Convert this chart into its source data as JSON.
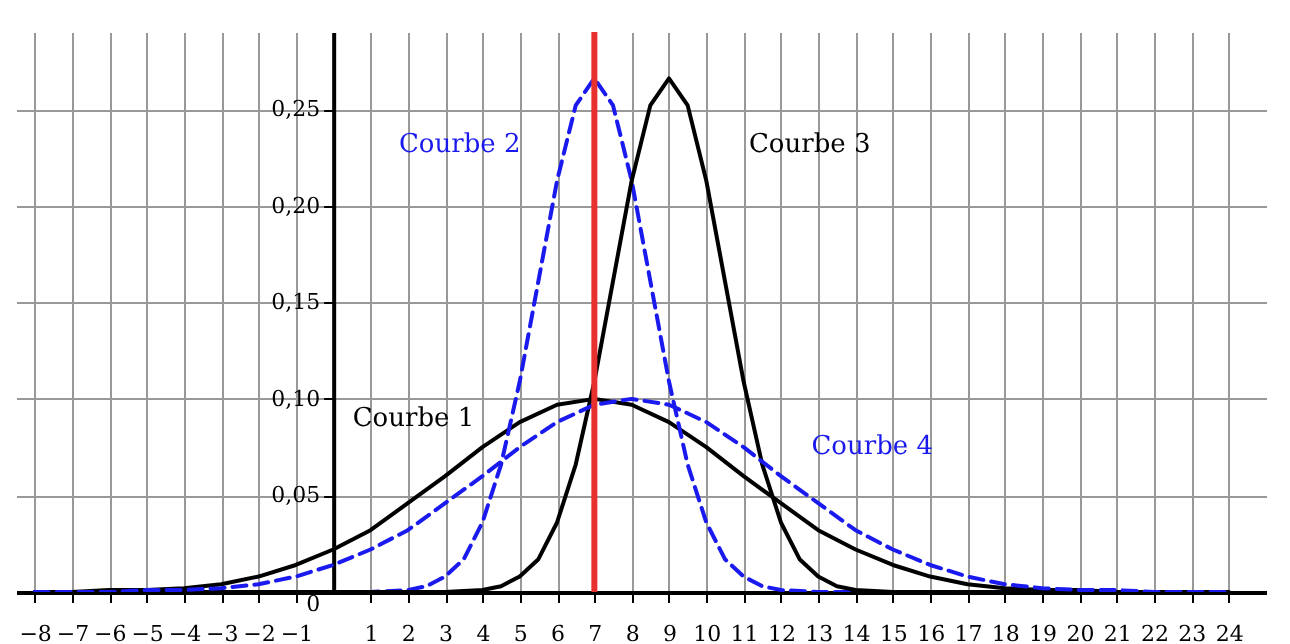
{
  "chart_data": {
    "type": "line",
    "series": [
      {
        "name": "Courbe 1",
        "color": "#000000",
        "line_style": "solid",
        "x": [
          -8,
          -7,
          -6,
          -5,
          -4,
          -3,
          -2,
          -1,
          0,
          1,
          2,
          3,
          4,
          5,
          6,
          7,
          8,
          9,
          10,
          11,
          12,
          13,
          14,
          15,
          16,
          17,
          18,
          19,
          20,
          21,
          22,
          23,
          24
        ],
        "values": [
          0,
          0,
          0.001,
          0.001,
          0.002,
          0.004,
          0.008,
          0.014,
          0.022,
          0.032,
          0.046,
          0.06,
          0.075,
          0.088,
          0.097,
          0.1,
          0.097,
          0.088,
          0.075,
          0.06,
          0.046,
          0.032,
          0.022,
          0.014,
          0.008,
          0.004,
          0.002,
          0.001,
          0.001,
          0,
          0,
          0,
          0
        ]
      },
      {
        "name": "Courbe 2",
        "color": "#1a1aee",
        "line_style": "dashed",
        "x": [
          -8,
          1,
          2,
          2.5,
          3,
          3.5,
          4,
          4.5,
          5,
          5.5,
          6,
          6.5,
          7,
          7.5,
          8,
          8.5,
          9,
          9.5,
          10,
          10.5,
          11,
          11.5,
          12,
          13,
          24
        ],
        "values": [
          0,
          0,
          0.001,
          0.003,
          0.008,
          0.017,
          0.036,
          0.066,
          0.109,
          0.161,
          0.213,
          0.252,
          0.266,
          0.252,
          0.213,
          0.161,
          0.109,
          0.066,
          0.036,
          0.017,
          0.008,
          0.003,
          0.001,
          0,
          0
        ]
      },
      {
        "name": "Courbe 3",
        "color": "#000000",
        "line_style": "solid",
        "x": [
          -8,
          3,
          4,
          4.5,
          5,
          5.5,
          6,
          6.5,
          7,
          7.5,
          8,
          8.5,
          9,
          9.5,
          10,
          10.5,
          11,
          11.5,
          12,
          12.5,
          13,
          13.5,
          14,
          15,
          24
        ],
        "values": [
          0,
          0,
          0.001,
          0.003,
          0.008,
          0.017,
          0.036,
          0.066,
          0.109,
          0.161,
          0.213,
          0.252,
          0.266,
          0.252,
          0.213,
          0.161,
          0.109,
          0.066,
          0.036,
          0.017,
          0.008,
          0.003,
          0.001,
          0,
          0
        ]
      },
      {
        "name": "Courbe 4",
        "color": "#1a1aee",
        "line_style": "dashed",
        "x": [
          -8,
          -7,
          -6,
          -5,
          -4,
          -3,
          -2,
          -1,
          0,
          1,
          2,
          3,
          4,
          5,
          6,
          7,
          8,
          9,
          10,
          11,
          12,
          13,
          14,
          15,
          16,
          17,
          18,
          19,
          20,
          21,
          22,
          23,
          24
        ],
        "values": [
          0,
          0,
          0,
          0.001,
          0.001,
          0.002,
          0.004,
          0.008,
          0.014,
          0.022,
          0.032,
          0.046,
          0.06,
          0.075,
          0.088,
          0.097,
          0.1,
          0.097,
          0.088,
          0.075,
          0.06,
          0.046,
          0.032,
          0.022,
          0.014,
          0.008,
          0.004,
          0.002,
          0.001,
          0.001,
          0,
          0,
          0
        ]
      }
    ],
    "xlim": [
      -8.5,
      25
    ],
    "xticks": [
      {
        "value": -8,
        "label": "−8"
      },
      {
        "value": -7,
        "label": "−7"
      },
      {
        "value": -6,
        "label": "−6"
      },
      {
        "value": -5,
        "label": "−5"
      },
      {
        "value": -4,
        "label": "−4"
      },
      {
        "value": -3,
        "label": "−3"
      },
      {
        "value": -2,
        "label": "−2"
      },
      {
        "value": -1,
        "label": "−1"
      },
      1,
      2,
      3,
      4,
      5,
      6,
      7,
      8,
      9,
      10,
      11,
      12,
      13,
      14,
      15,
      16,
      17,
      18,
      19,
      20,
      21,
      22,
      23,
      24
    ],
    "ylim": [
      0,
      0.29
    ],
    "yticks": [
      {
        "value": 0,
        "label": "0"
      },
      {
        "value": 0.05,
        "label": "0,05"
      },
      {
        "value": 0.1,
        "label": "0,10"
      },
      {
        "value": 0.15,
        "label": "0,15"
      },
      {
        "value": 0.2,
        "label": "0,20"
      },
      {
        "value": 0.25,
        "label": "0,25"
      }
    ],
    "grid": true,
    "ref_lines": [
      {
        "axis": "x",
        "value": 7,
        "color": "#e8312f"
      }
    ]
  }
}
